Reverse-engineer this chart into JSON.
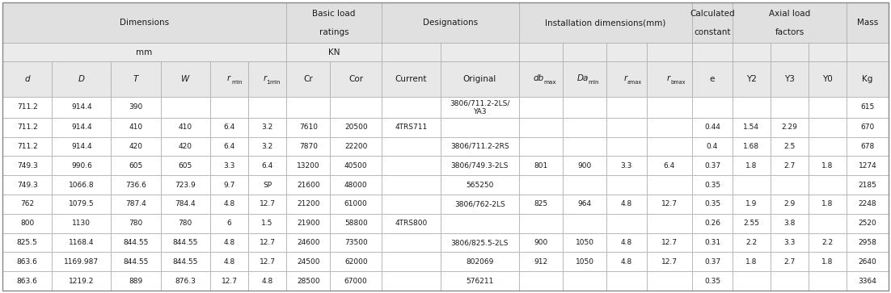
{
  "rows": [
    [
      "711.2",
      "914.4",
      "390",
      "",
      "",
      "",
      "",
      "",
      "",
      "3806/711.2-2LS/\nYA3",
      "",
      "",
      "",
      "",
      "",
      "",
      "",
      "",
      "615"
    ],
    [
      "711.2",
      "914.4",
      "410",
      "410",
      "6.4",
      "3.2",
      "7610",
      "20500",
      "4TRS711",
      "",
      "",
      "",
      "",
      "",
      "0.44",
      "1.54",
      "2.29",
      "",
      "670"
    ],
    [
      "711.2",
      "914.4",
      "420",
      "420",
      "6.4",
      "3.2",
      "7870",
      "22200",
      "",
      "3806/711.2-2RS",
      "",
      "",
      "",
      "",
      "0.4",
      "1.68",
      "2.5",
      "",
      "678"
    ],
    [
      "749.3",
      "990.6",
      "605",
      "605",
      "3.3",
      "6.4",
      "13200",
      "40500",
      "",
      "3806/749.3-2LS",
      "801",
      "900",
      "3.3",
      "6.4",
      "0.37",
      "1.8",
      "2.7",
      "1.8",
      "1274"
    ],
    [
      "749.3",
      "1066.8",
      "736.6",
      "723.9",
      "9.7",
      "SP",
      "21600",
      "48000",
      "",
      "565250",
      "",
      "",
      "",
      "",
      "0.35",
      "",
      "",
      "",
      "2185"
    ],
    [
      "762",
      "1079.5",
      "787.4",
      "784.4",
      "4.8",
      "12.7",
      "21200",
      "61000",
      "",
      "3806/762-2LS",
      "825",
      "964",
      "4.8",
      "12.7",
      "0.35",
      "1.9",
      "2.9",
      "1.8",
      "2248"
    ],
    [
      "800",
      "1130",
      "780",
      "780",
      "6",
      "1.5",
      "21900",
      "58800",
      "4TRS800",
      "",
      "",
      "",
      "",
      "",
      "0.26",
      "2.55",
      "3.8",
      "",
      "2520"
    ],
    [
      "825.5",
      "1168.4",
      "844.55",
      "844.55",
      "4.8",
      "12.7",
      "24600",
      "73500",
      "",
      "3806/825.5-2LS",
      "900",
      "1050",
      "4.8",
      "12.7",
      "0.31",
      "2.2",
      "3.3",
      "2.2",
      "2958"
    ],
    [
      "863.6",
      "1169.987",
      "844.55",
      "844.55",
      "4.8",
      "12.7",
      "24500",
      "62000",
      "",
      "802069",
      "912",
      "1050",
      "4.8",
      "12.7",
      "0.37",
      "1.8",
      "2.7",
      "1.8",
      "2640"
    ],
    [
      "863.6",
      "1219.2",
      "889",
      "876.3",
      "12.7",
      "4.8",
      "28500",
      "67000",
      "",
      "576211",
      "",
      "",
      "",
      "",
      "0.35",
      "",
      "",
      "",
      "3364"
    ]
  ],
  "bg_header": "#e0e0e0",
  "bg_subheader": "#ebebeb",
  "bg_colheader": "#e8e8e8",
  "bg_white": "#ffffff",
  "text_color": "#1a1a1a",
  "border_color": "#aaaaaa",
  "col_widths_pt": [
    52,
    62,
    52,
    52,
    40,
    40,
    46,
    54,
    62,
    82,
    46,
    46,
    42,
    48,
    42,
    40,
    40,
    40,
    44
  ],
  "row_heights_pt": [
    55,
    25,
    48,
    28,
    26,
    26,
    26,
    26,
    26,
    26,
    26,
    26,
    26
  ]
}
